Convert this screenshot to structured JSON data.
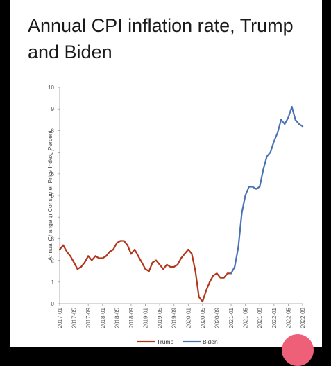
{
  "post": {
    "title": "Annual CPI inflation rate, Trump and Biden"
  },
  "colors": {
    "trump": "#b2361c",
    "biden": "#4a72b5",
    "axis": "#9a9a9a"
  },
  "chart_data": {
    "type": "line",
    "title": "",
    "xlabel": "",
    "ylabel": "Annual Change in Consumer Price Index, Percent",
    "ylim": [
      0,
      10
    ],
    "yticks": [
      0,
      1,
      2,
      3,
      4,
      5,
      6,
      7,
      8,
      9,
      10
    ],
    "grid": false,
    "legend_position": "bottom-center",
    "xticks": [
      "2017-01",
      "2017-05",
      "2017-09",
      "2018-01",
      "2018-05",
      "2018-09",
      "2019-01",
      "2019-05",
      "2019-09",
      "2020-01",
      "2020-05",
      "2020-09",
      "2021-01",
      "2021-05",
      "2021-09",
      "2022-01",
      "2022-05",
      "2022-09"
    ],
    "series": [
      {
        "name": "Trump",
        "color": "#b2361c",
        "x": [
          "2017-01",
          "2017-02",
          "2017-03",
          "2017-04",
          "2017-05",
          "2017-06",
          "2017-07",
          "2017-08",
          "2017-09",
          "2017-10",
          "2017-11",
          "2017-12",
          "2018-01",
          "2018-02",
          "2018-03",
          "2018-04",
          "2018-05",
          "2018-06",
          "2018-07",
          "2018-08",
          "2018-09",
          "2018-10",
          "2018-11",
          "2018-12",
          "2019-01",
          "2019-02",
          "2019-03",
          "2019-04",
          "2019-05",
          "2019-06",
          "2019-07",
          "2019-08",
          "2019-09",
          "2019-10",
          "2019-11",
          "2019-12",
          "2020-01",
          "2020-02",
          "2020-03",
          "2020-04",
          "2020-05",
          "2020-06",
          "2020-07",
          "2020-08",
          "2020-09",
          "2020-10",
          "2020-11",
          "2020-12",
          "2021-01"
        ],
        "values": [
          2.5,
          2.7,
          2.4,
          2.2,
          1.9,
          1.6,
          1.7,
          1.9,
          2.2,
          2.0,
          2.2,
          2.1,
          2.1,
          2.2,
          2.4,
          2.5,
          2.8,
          2.9,
          2.9,
          2.7,
          2.3,
          2.5,
          2.2,
          1.9,
          1.6,
          1.5,
          1.9,
          2.0,
          1.8,
          1.6,
          1.8,
          1.7,
          1.7,
          1.8,
          2.1,
          2.3,
          2.5,
          2.3,
          1.5,
          0.3,
          0.1,
          0.6,
          1.0,
          1.3,
          1.4,
          1.2,
          1.2,
          1.4,
          1.4
        ]
      },
      {
        "name": "Biden",
        "color": "#4a72b5",
        "x": [
          "2021-01",
          "2021-02",
          "2021-03",
          "2021-04",
          "2021-05",
          "2021-06",
          "2021-07",
          "2021-08",
          "2021-09",
          "2021-10",
          "2021-11",
          "2021-12",
          "2022-01",
          "2022-02",
          "2022-03",
          "2022-04",
          "2022-05",
          "2022-06",
          "2022-07",
          "2022-08",
          "2022-09"
        ],
        "values": [
          1.4,
          1.7,
          2.6,
          4.2,
          5.0,
          5.4,
          5.4,
          5.3,
          5.4,
          6.2,
          6.8,
          7.0,
          7.5,
          7.9,
          8.5,
          8.3,
          8.6,
          9.1,
          8.5,
          8.3,
          8.2
        ]
      }
    ]
  }
}
